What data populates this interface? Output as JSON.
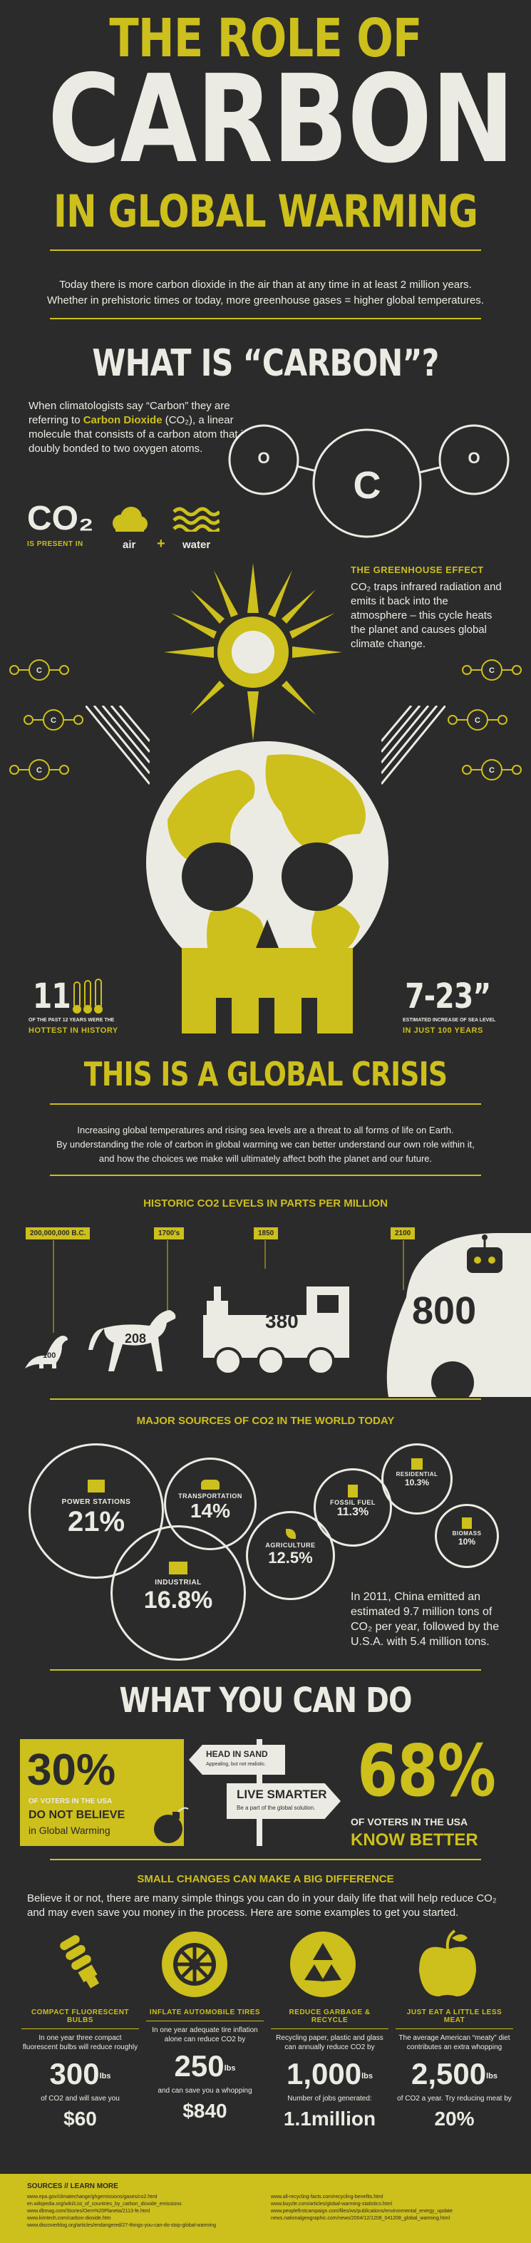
{
  "header": {
    "line1": "THE ROLE OF",
    "line2": "CARBON",
    "line3": "IN GLOBAL WARMING",
    "intro1": "Today there is more carbon dioxide in the air than at any time in at least 2 million years.",
    "intro2": "Whether in prehistoric times or today, more greenhouse gases = higher global temperatures."
  },
  "what_is": {
    "title": "WHAT IS “CARBON”?",
    "text_pre": "When climatologists say “Carbon” they are referring to ",
    "text_highlight": "Carbon Dioxide",
    "text_post": " (CO₂), a linear molecule that consists of a carbon atom that is doubly bonded to two oxygen atoms.",
    "atom_o1": "O",
    "atom_c": "C",
    "atom_o2": "O",
    "co2_symbol": "CO₂",
    "present_in": "IS PRESENT IN",
    "air": "air",
    "plus": "+",
    "water": "water",
    "greenhouse_title": "THE GREENHOUSE EFFECT",
    "greenhouse_text": "CO₂ traps infrared radiation and emits it back into the atmosphere – this cycle heats the planet and causes global climate change."
  },
  "skull_stats": {
    "hot_num": "11",
    "hot_sub": "OF THE PAST 12 YEARS WERE THE",
    "hot_label": "HOTTEST IN HISTORY",
    "sea_num": "7-23”",
    "sea_sub": "ESTIMATED INCREASE OF SEA LEVEL",
    "sea_label": "IN JUST 100 YEARS"
  },
  "crisis": {
    "title": "THIS IS A GLOBAL CRISIS",
    "p1": "Increasing global temperatures and rising sea levels are a threat to all forms of life on Earth.",
    "p2": "By understanding the role of carbon in global warming we can better understand our own role within it,",
    "p3": "and how the choices we make will ultimately affect both the planet and our future."
  },
  "historic": {
    "title": "HISTORIC CO2 LEVELS IN PARTS PER MILLION",
    "eras": [
      {
        "label": "200,000,000 B.C.",
        "value": "100"
      },
      {
        "label": "1700's",
        "value": "208"
      },
      {
        "label": "1850",
        "value": "380"
      },
      {
        "label": "2100",
        "value": "800"
      }
    ]
  },
  "sources": {
    "title": "MAJOR SOURCES OF CO2 IN THE WORLD TODAY",
    "items": [
      {
        "label": "POWER STATIONS",
        "value": "21%"
      },
      {
        "label": "TRANSPORTATION",
        "value": "14%"
      },
      {
        "label": "INDUSTRIAL",
        "value": "16.8%"
      },
      {
        "label": "AGRICULTURE",
        "value": "12.5%"
      },
      {
        "label": "FOSSIL FUEL",
        "value": "11.3%"
      },
      {
        "label": "RESIDENTIAL",
        "value": "10.3%"
      },
      {
        "label": "BIOMASS",
        "value": "10%"
      }
    ],
    "china_text": "In 2011, China emitted an estimated 9.7 million tons of CO₂ per year, followed by the U.S.A. with 5.4 million tons."
  },
  "what_you_can_do": {
    "title": "WHAT YOU CAN DO",
    "left_num": "30%",
    "left_sub": "OF VOTERS IN THE USA",
    "left_hl": "DO NOT BELIEVE",
    "left_tail": "in Global Warming",
    "sign1_title": "HEAD IN SAND",
    "sign1_sub": "Appealing, but not realistic.",
    "sign2_title": "LIVE SMARTER",
    "sign2_sub": "Be a part of the global solution.",
    "right_num": "68%",
    "right_sub": "OF VOTERS IN THE USA",
    "right_hl": "KNOW BETTER"
  },
  "small_changes": {
    "title": "SMALL CHANGES CAN MAKE A BIG DIFFERENCE",
    "intro": "Believe it or not, there are many simple things you can do in your daily life that will help reduce CO₂ and may even save you money in the process. Here are some examples to get you started.",
    "tips": [
      {
        "title": "COMPACT FLUORESCENT BULBS",
        "text": "In one year three compact fluorescent bulbs will reduce roughly",
        "num": "300",
        "unit": "lbs",
        "mid": "of CO2 and will save you",
        "big": "$60"
      },
      {
        "title": "INFLATE AUTOMOBILE TIRES",
        "text": "In one year adequate tire inflation alone can reduce CO2 by",
        "num": "250",
        "unit": "lbs",
        "mid": "and can save you a whopping",
        "big": "$840"
      },
      {
        "title": "REDUCE GARBAGE & RECYCLE",
        "text": "Recycling paper, plastic and glass can annually reduce CO2 by",
        "num": "1,000",
        "unit": "lbs",
        "mid": "Number of jobs generated:",
        "big": "1.1million"
      },
      {
        "title": "JUST EAT A LITTLE LESS MEAT",
        "text": "The average American “meaty” diet contributes an extra whopping",
        "num": "2,500",
        "unit": "lbs",
        "mid": "of CO2 a year. Try reducing meat by",
        "big": "20%"
      }
    ]
  },
  "footer": {
    "title": "SOURCES // LEARN MORE",
    "left": [
      "www.epa.gov/climatechange/ghgemissions/gases/co2.html",
      "en.wikipedia.org/wiki/List_of_countries_by_carbon_dioxide_emissions",
      "www.dbmag.com/Stories/Oem%20Planeta/2113-fe.html",
      "www.kimtech.com/carbon-dioxide.htm",
      "www.discoverblog.org/articles/endangered/27-things-you-can-do-stop-global-warming"
    ],
    "right": [
      "www.all-recycling-facts.com/recycling-benefits.html",
      "www.buyzle.com/articles/global-warming-statistics.html",
      "www.peoplefirstcampaign.com/files/ws/publications/environmental_energy_update",
      "news.nationalgeographic.com/news/2004/12/1208_041208_global_warming.html"
    ]
  }
}
